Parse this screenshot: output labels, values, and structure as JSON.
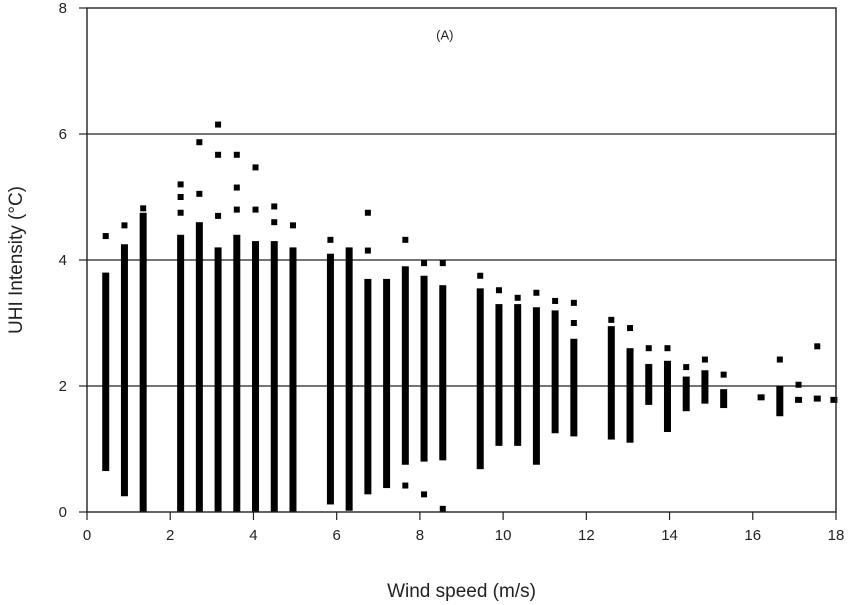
{
  "chart_data": {
    "type": "scatter",
    "panel_label": "(A)",
    "xlabel": "Wind speed (m/s)",
    "ylabel": "UHI Intensity (°C)",
    "xlim": [
      0,
      18
    ],
    "ylim": [
      0,
      8
    ],
    "xticks": [
      0,
      2,
      4,
      6,
      8,
      10,
      12,
      14,
      16,
      18
    ],
    "yticks": [
      0,
      2,
      4,
      6,
      8
    ],
    "grid": "horizontal",
    "marker_color": "#000000",
    "columns": [
      {
        "x": 0.45,
        "ymin": 0.65,
        "ymax": 3.8,
        "outliers": [
          4.38
        ]
      },
      {
        "x": 0.9,
        "ymin": 0.25,
        "ymax": 4.25,
        "outliers": [
          4.55
        ]
      },
      {
        "x": 1.35,
        "ymin": 0.0,
        "ymax": 4.75,
        "outliers": [
          4.82
        ]
      },
      {
        "x": 2.25,
        "ymin": 0.0,
        "ymax": 4.4,
        "outliers": [
          4.75,
          5.0,
          5.2
        ]
      },
      {
        "x": 2.7,
        "ymin": 0.0,
        "ymax": 4.6,
        "outliers": [
          5.05,
          5.87
        ]
      },
      {
        "x": 3.15,
        "ymin": 0.0,
        "ymax": 4.2,
        "outliers": [
          4.7,
          5.67,
          6.15
        ]
      },
      {
        "x": 3.6,
        "ymin": 0.0,
        "ymax": 4.4,
        "outliers": [
          4.8,
          5.15,
          5.67
        ]
      },
      {
        "x": 4.05,
        "ymin": 0.0,
        "ymax": 4.3,
        "outliers": [
          4.8,
          5.47
        ]
      },
      {
        "x": 4.5,
        "ymin": 0.0,
        "ymax": 4.3,
        "outliers": [
          4.6,
          4.85
        ]
      },
      {
        "x": 4.95,
        "ymin": 0.0,
        "ymax": 4.2,
        "outliers": [
          4.55
        ]
      },
      {
        "x": 5.85,
        "ymin": 0.12,
        "ymax": 4.1,
        "outliers": [
          4.32
        ]
      },
      {
        "x": 6.3,
        "ymin": 0.02,
        "ymax": 4.2,
        "outliers": []
      },
      {
        "x": 6.75,
        "ymin": 0.28,
        "ymax": 3.7,
        "outliers": [
          4.15,
          4.75
        ]
      },
      {
        "x": 7.2,
        "ymin": 0.38,
        "ymax": 3.7,
        "outliers": []
      },
      {
        "x": 7.65,
        "ymin": 0.75,
        "ymax": 3.9,
        "outliers": [
          4.32,
          0.42
        ]
      },
      {
        "x": 8.1,
        "ymin": 0.8,
        "ymax": 3.75,
        "outliers": [
          3.95,
          0.28
        ]
      },
      {
        "x": 8.55,
        "ymin": 0.82,
        "ymax": 3.6,
        "outliers": [
          3.95,
          0.05
        ]
      },
      {
        "x": 9.45,
        "ymin": 0.68,
        "ymax": 3.55,
        "outliers": [
          3.75
        ]
      },
      {
        "x": 9.9,
        "ymin": 1.05,
        "ymax": 3.3,
        "outliers": [
          3.52
        ]
      },
      {
        "x": 10.35,
        "ymin": 1.05,
        "ymax": 3.3,
        "outliers": [
          3.4
        ]
      },
      {
        "x": 10.8,
        "ymin": 0.75,
        "ymax": 3.25,
        "outliers": [
          3.48
        ]
      },
      {
        "x": 11.25,
        "ymin": 1.25,
        "ymax": 3.2,
        "outliers": [
          3.35
        ]
      },
      {
        "x": 11.7,
        "ymin": 1.2,
        "ymax": 2.75,
        "outliers": [
          3.0,
          3.32
        ]
      },
      {
        "x": 12.6,
        "ymin": 1.15,
        "ymax": 2.95,
        "outliers": [
          3.05
        ]
      },
      {
        "x": 13.05,
        "ymin": 1.1,
        "ymax": 2.6,
        "outliers": [
          2.92
        ]
      },
      {
        "x": 13.5,
        "ymin": 1.7,
        "ymax": 2.35,
        "outliers": [
          2.6
        ]
      },
      {
        "x": 13.95,
        "ymin": 1.27,
        "ymax": 2.4,
        "outliers": [
          2.6
        ]
      },
      {
        "x": 14.4,
        "ymin": 1.6,
        "ymax": 2.15,
        "outliers": [
          2.3
        ]
      },
      {
        "x": 14.85,
        "ymin": 1.72,
        "ymax": 2.25,
        "outliers": [
          2.42
        ]
      },
      {
        "x": 15.3,
        "ymin": 1.65,
        "ymax": 1.95,
        "outliers": [
          2.18
        ]
      },
      {
        "x": 16.2,
        "ymin": 1.82,
        "ymax": 1.82,
        "outliers": []
      },
      {
        "x": 16.65,
        "ymin": 1.52,
        "ymax": 2.0,
        "outliers": [
          2.42
        ]
      },
      {
        "x": 17.1,
        "ymin": 1.78,
        "ymax": 1.78,
        "outliers": [
          2.02
        ]
      },
      {
        "x": 17.55,
        "ymin": 1.8,
        "ymax": 1.8,
        "outliers": [
          2.63
        ]
      },
      {
        "x": 17.95,
        "ymin": 1.78,
        "ymax": 1.78,
        "outliers": []
      }
    ]
  }
}
